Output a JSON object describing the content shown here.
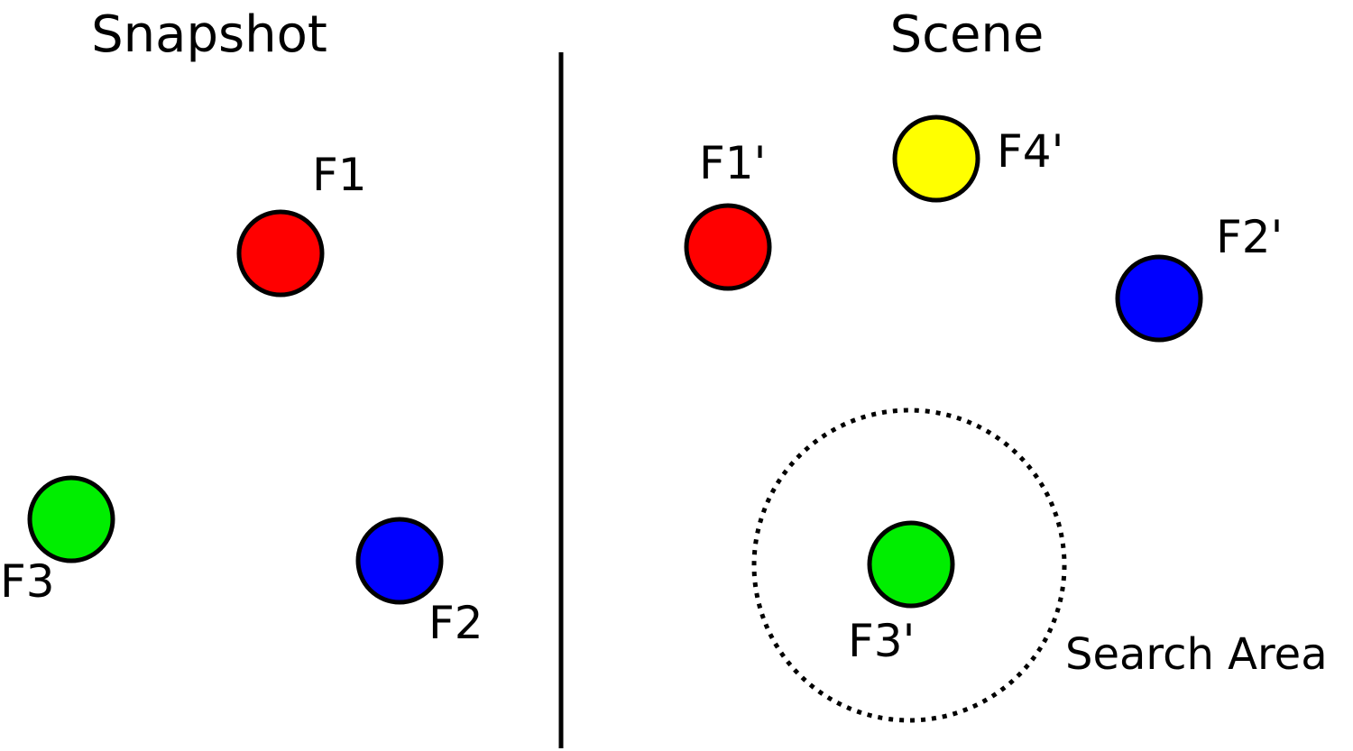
{
  "panels": {
    "snapshot": {
      "title": "Snapshot"
    },
    "scene": {
      "title": "Scene"
    }
  },
  "colors": {
    "red": "#ff0000",
    "blue": "#0000ff",
    "green": "#00ee00",
    "yellow": "#ffff00",
    "stroke": "#000000"
  },
  "features": {
    "snapshot": [
      {
        "label": "F1",
        "color": "red"
      },
      {
        "label": "F2",
        "color": "blue"
      },
      {
        "label": "F3",
        "color": "green"
      }
    ],
    "scene": [
      {
        "label": "F1'",
        "color": "red"
      },
      {
        "label": "F2'",
        "color": "blue"
      },
      {
        "label": "F3'",
        "color": "green"
      },
      {
        "label": "F4'",
        "color": "yellow"
      }
    ]
  },
  "search_area": {
    "label": "Search Area"
  }
}
